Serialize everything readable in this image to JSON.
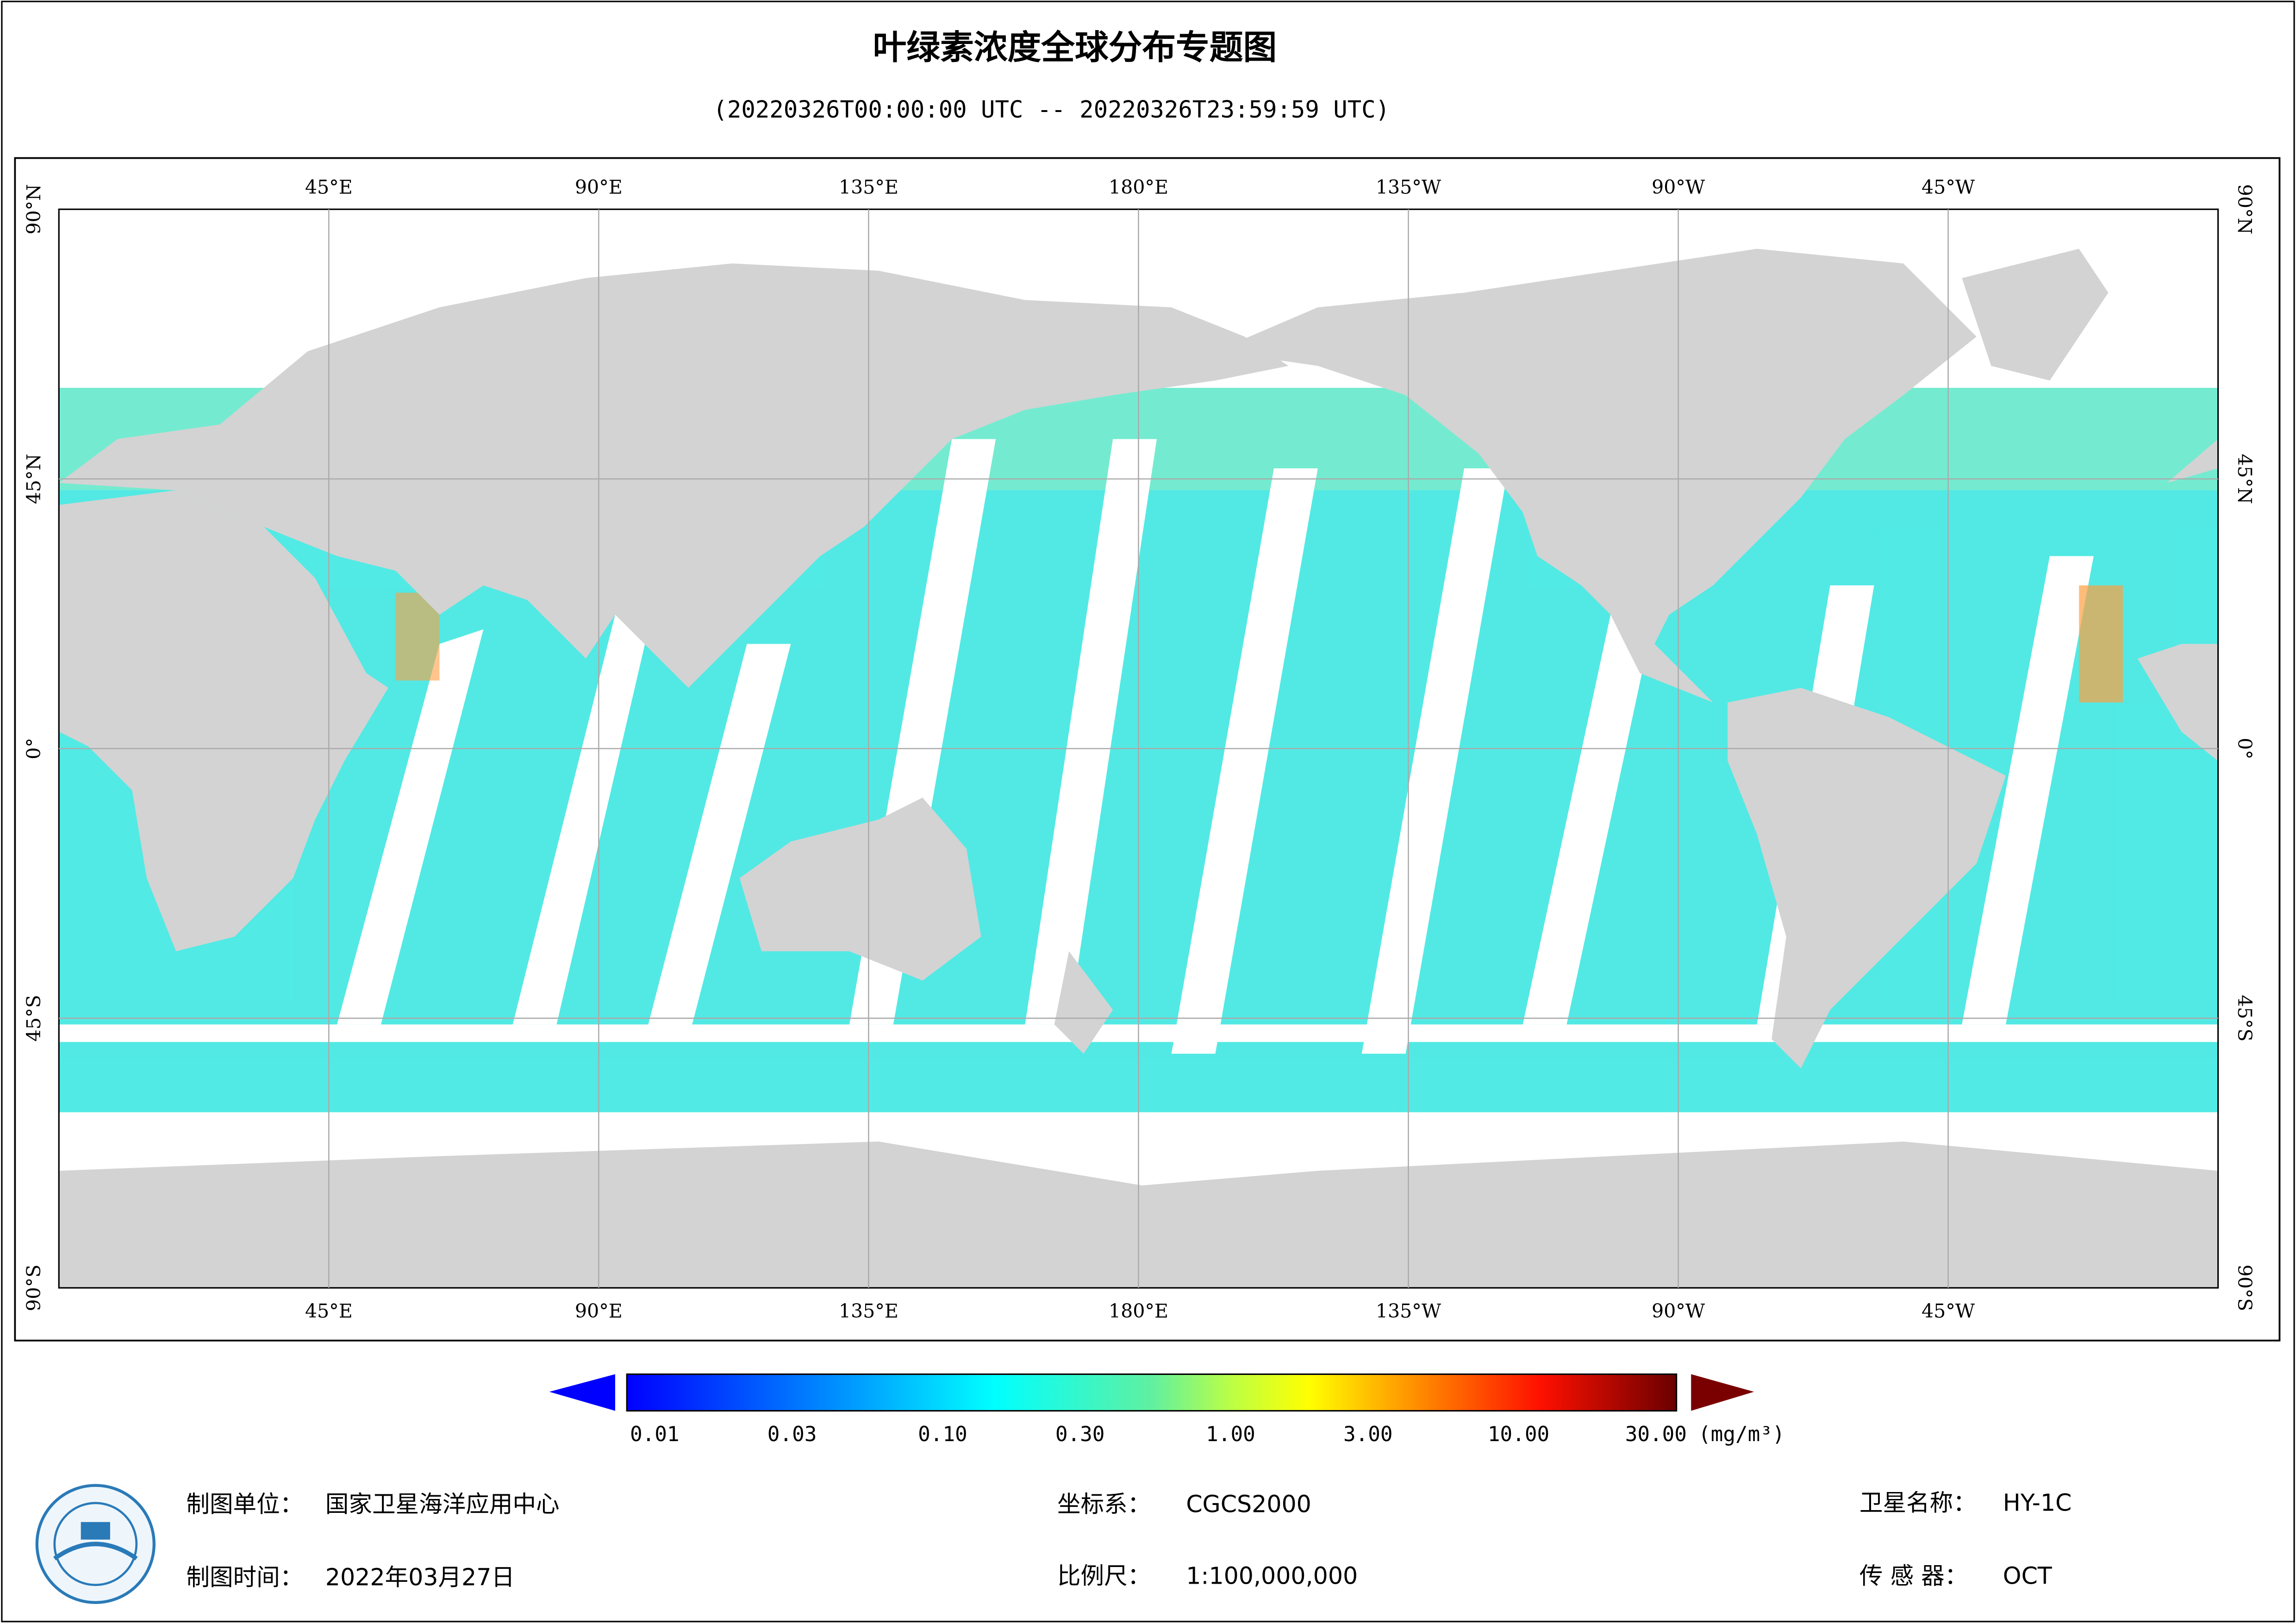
{
  "header": {
    "title": "叶绿素浓度全球分布专题图",
    "subtitle": "(20220326T00:00:00 UTC -- 20220326T23:59:59 UTC)"
  },
  "map": {
    "lon_range": [
      0,
      360
    ],
    "lat_range": [
      90,
      -90
    ],
    "lon_ticks": [
      {
        "value": 45,
        "label": "45°E"
      },
      {
        "value": 90,
        "label": "90°E"
      },
      {
        "value": 135,
        "label": "135°E"
      },
      {
        "value": 180,
        "label": "180°E"
      },
      {
        "value": 225,
        "label": "135°W"
      },
      {
        "value": 270,
        "label": "90°W"
      },
      {
        "value": 315,
        "label": "45°W"
      }
    ],
    "lat_ticks": [
      {
        "value": 90,
        "label": "90°N"
      },
      {
        "value": 45,
        "label": "45°N"
      },
      {
        "value": 0,
        "label": "0°"
      },
      {
        "value": -45,
        "label": "45°S"
      },
      {
        "value": -90,
        "label": "90°S"
      }
    ],
    "grid": true
  },
  "colorbar": {
    "scale": "log",
    "range": [
      0.01,
      30
    ],
    "ticks": [
      0.01,
      0.03,
      {
        "value": 0.1,
        "label": "0.10"
      },
      {
        "value": 0.3,
        "label": "0.30"
      },
      {
        "value": 1,
        "label": "1.00"
      },
      {
        "value": 3,
        "label": "3.00"
      },
      {
        "value": 10,
        "label": "10.00"
      },
      {
        "value": 30,
        "label": "30.00"
      }
    ],
    "unit": "(mg/m³)"
  },
  "footer": {
    "unit_label": "制图单位：",
    "unit": "国家卫星海洋应用中心",
    "date_label": "制图时间：",
    "date": "2022年03月27日",
    "crs_label": "坐标系：",
    "crs": "CGCS2000",
    "scale_label": "比例尺：",
    "scale": "1:100,000,000",
    "satellite_label": "卫星名称：",
    "satellite": "HY-1C",
    "sensor_label": "传 感 器：",
    "sensor": "OCT"
  }
}
